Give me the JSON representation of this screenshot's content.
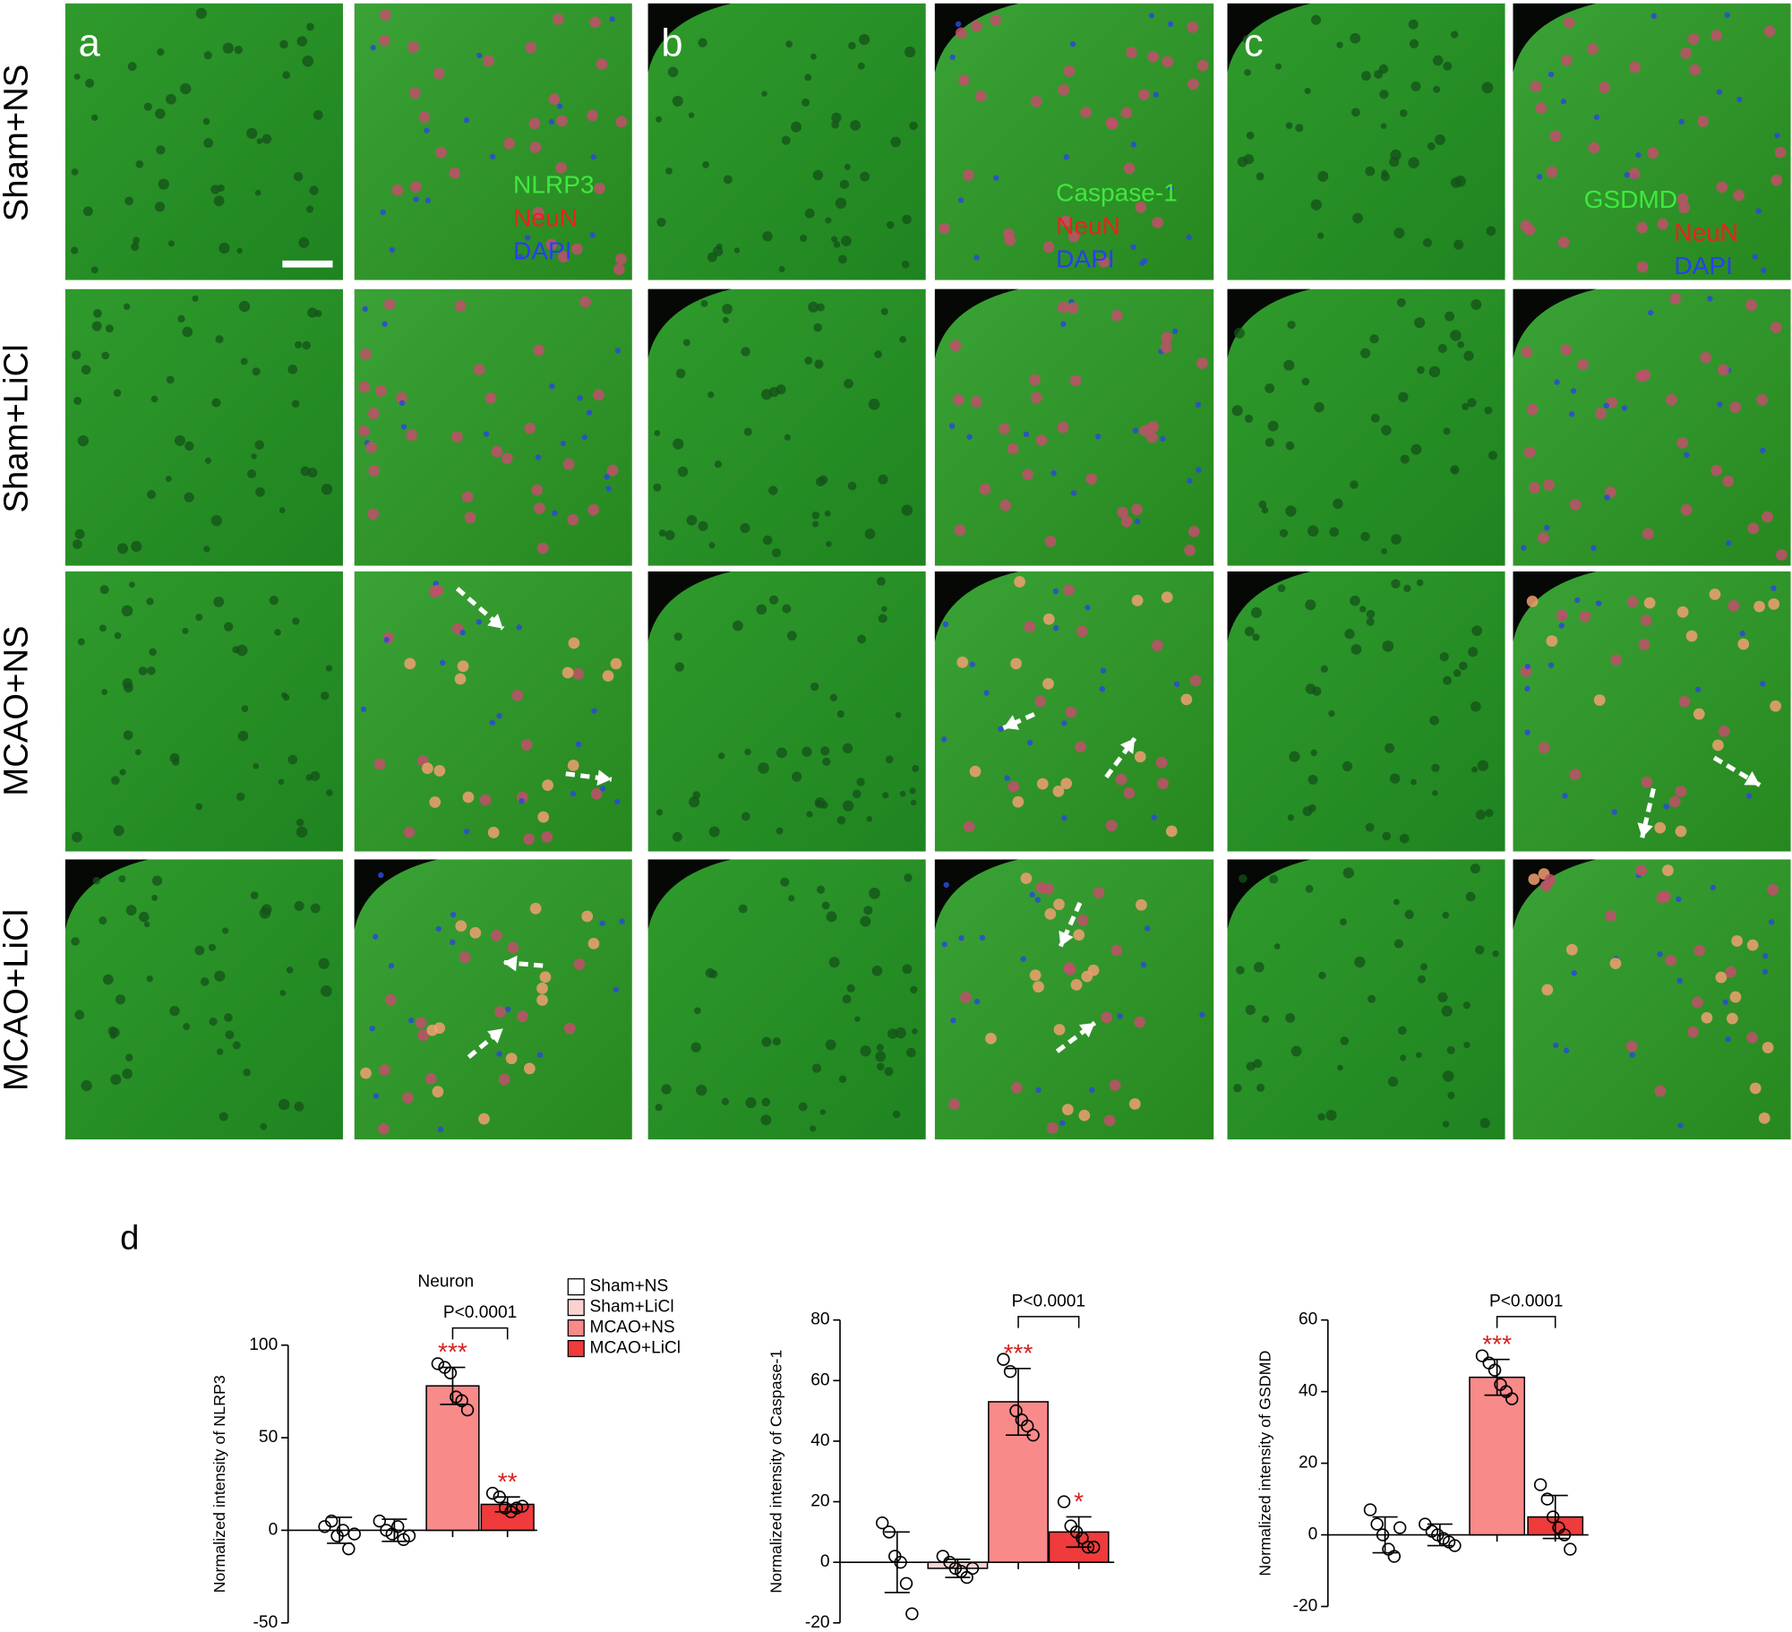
{
  "figure": {
    "panel_letters": [
      "a",
      "b",
      "c"
    ],
    "row_labels": [
      "Sham+NS",
      "Sham+LiCl",
      "MCAO+NS",
      "MCAO+LiCl"
    ],
    "stains": [
      [
        "NLRP3",
        "NeuN",
        "DAPI"
      ],
      [
        "Caspase-1",
        "NeuN",
        "DAPI"
      ],
      [
        "GSDMD",
        "NeuN",
        "DAPI"
      ]
    ],
    "quant_letter": "d"
  },
  "chart_data": [
    {
      "type": "bar",
      "title": "Neuron",
      "ylabel": "Normalized intensity of NLRP3",
      "categories": [
        null,
        null,
        null,
        null
      ],
      "colors": [
        "#ffffff",
        "#f9d2d2",
        "#f98a8a",
        "#ef3b3b"
      ],
      "values": [
        0,
        0,
        78,
        14
      ],
      "errors": [
        7,
        6,
        10,
        4
      ],
      "points": [
        [
          2,
          5,
          -3,
          0,
          -10,
          -2
        ],
        [
          5,
          0,
          -2,
          2,
          -5,
          -3
        ],
        [
          90,
          88,
          85,
          72,
          70,
          65
        ],
        [
          20,
          18,
          12,
          10,
          12,
          13
        ]
      ],
      "stars": [
        null,
        null,
        "***",
        "**"
      ],
      "comparison": "P<0.0001",
      "ylim": [
        -50,
        100
      ],
      "yticks": [
        -50,
        0,
        50,
        100
      ],
      "legend": [
        "Sham+NS",
        "Sham+LiCl",
        "MCAO+NS",
        "MCAO+LiCl"
      ]
    },
    {
      "type": "bar",
      "ylabel": "Normalized intensity of Caspase-1",
      "categories": [
        null,
        null,
        null,
        null
      ],
      "colors": [
        "#ffffff",
        "#f9d2d2",
        "#f98a8a",
        "#ef3b3b"
      ],
      "values": [
        0,
        -2,
        53,
        10
      ],
      "errors": [
        10,
        3,
        11,
        5
      ],
      "points": [
        [
          13,
          10,
          2,
          0,
          -7,
          -17
        ],
        [
          2,
          0,
          -2,
          -3,
          -5,
          -2
        ],
        [
          67,
          63,
          50,
          47,
          45,
          42
        ],
        [
          20,
          12,
          10,
          8,
          5,
          5
        ]
      ],
      "stars": [
        null,
        null,
        "***",
        "*"
      ],
      "comparison": "P<0.0001",
      "ylim": [
        -20,
        80
      ],
      "yticks": [
        -20,
        0,
        20,
        40,
        60,
        80
      ]
    },
    {
      "type": "bar",
      "ylabel": "Normalized intensity of GSDMD",
      "categories": [
        null,
        null,
        null,
        null
      ],
      "colors": [
        "#ffffff",
        "#f9d2d2",
        "#f98a8a",
        "#ef3b3b"
      ],
      "values": [
        0,
        0,
        44,
        5
      ],
      "errors": [
        5,
        3,
        5,
        6
      ],
      "points": [
        [
          7,
          3,
          0,
          -4,
          -6,
          2
        ],
        [
          3,
          1,
          0,
          -1,
          -2,
          -3
        ],
        [
          50,
          48,
          46,
          42,
          40,
          38
        ],
        [
          14,
          10,
          5,
          2,
          0,
          -4
        ]
      ],
      "stars": [
        null,
        null,
        "***",
        null
      ],
      "comparison": "P<0.0001",
      "ylim": [
        -20,
        60
      ],
      "yticks": [
        -20,
        0,
        20,
        40,
        60
      ]
    }
  ]
}
